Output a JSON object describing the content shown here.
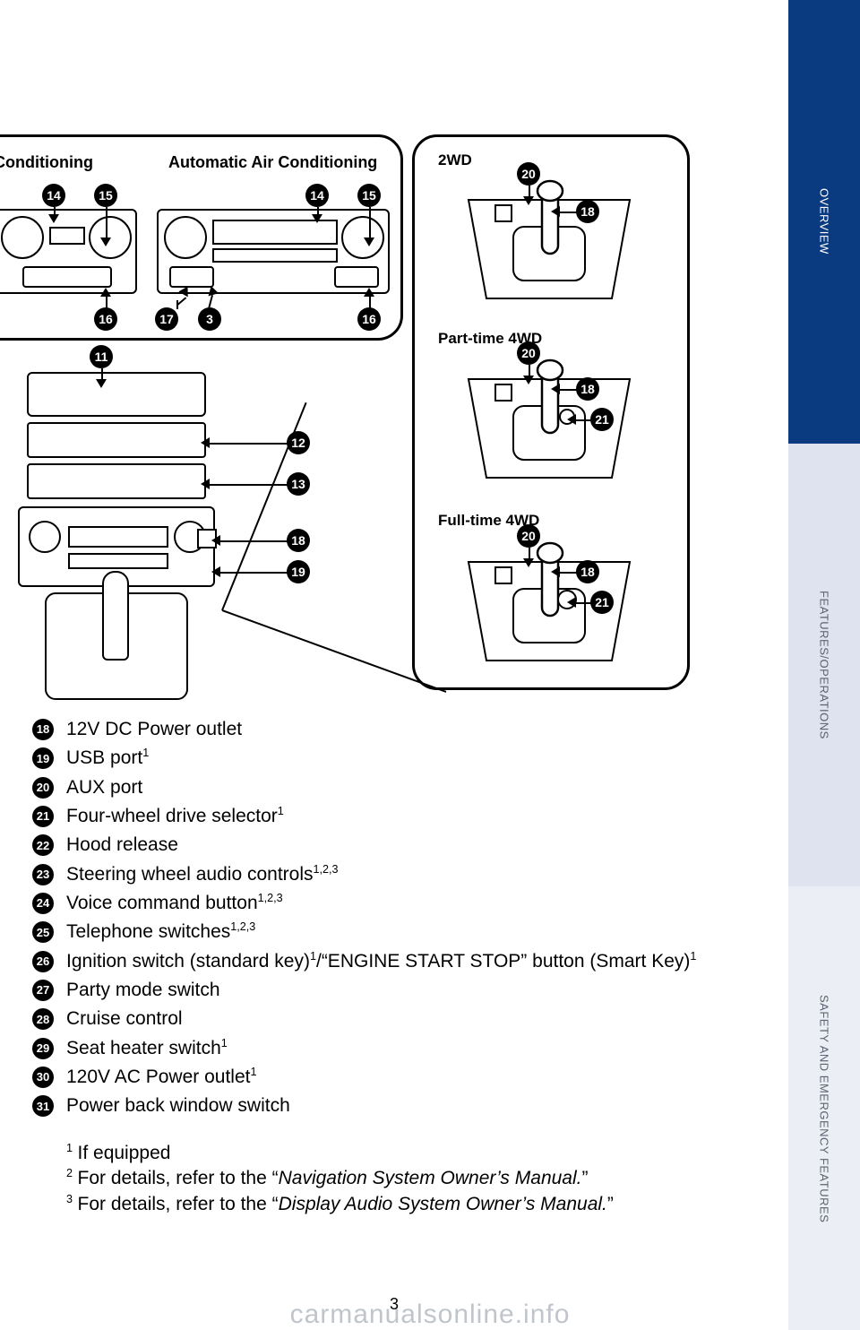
{
  "sidetabs": {
    "overview": "OVERVIEW",
    "features": "FEATURES/OPERATIONS",
    "safety": "SAFETY AND EMERGENCY FEATURES"
  },
  "ac_panel": {
    "label_conditioning": "Conditioning",
    "label_auto": "Automatic Air Conditioning",
    "callouts_left": {
      "c14": "14",
      "c15": "15",
      "c16": "16"
    },
    "callouts_right": {
      "c14": "14",
      "c15": "15",
      "c16": "16",
      "c17": "17",
      "c3": "3"
    }
  },
  "center_console": {
    "c11": "11",
    "c12": "12",
    "c13": "13",
    "c18": "18",
    "c19": "19"
  },
  "drive_panel": {
    "label_2wd": "2WD",
    "label_pt4wd": "Part-time 4WD",
    "label_ft4wd": "Full-time 4WD",
    "twd": {
      "c20": "20",
      "c18": "18"
    },
    "pt4wd": {
      "c20": "20",
      "c18": "18",
      "c21": "21"
    },
    "ft4wd": {
      "c20": "20",
      "c18": "18",
      "c21": "21"
    }
  },
  "list": [
    {
      "n": "18",
      "text": "12V DC Power outlet",
      "sup": ""
    },
    {
      "n": "19",
      "text": "USB port",
      "sup": "1"
    },
    {
      "n": "20",
      "text": "AUX port",
      "sup": ""
    },
    {
      "n": "21",
      "text": "Four-wheel drive selector",
      "sup": "1"
    },
    {
      "n": "22",
      "text": "Hood release",
      "sup": ""
    },
    {
      "n": "23",
      "text": "Steering wheel audio controls",
      "sup": "1,2,3"
    },
    {
      "n": "24",
      "text": "Voice command button",
      "sup": "1,2,3"
    },
    {
      "n": "25",
      "text": "Telephone switches",
      "sup": "1,2,3"
    },
    {
      "n": "26",
      "text": "Ignition switch (standard key)",
      "sup": "1",
      "text2": "/“ENGINE START STOP” button (Smart Key)",
      "sup2": "1"
    },
    {
      "n": "27",
      "text": "Party mode switch",
      "sup": ""
    },
    {
      "n": "28",
      "text": "Cruise control",
      "sup": ""
    },
    {
      "n": "29",
      "text": "Seat heater switch",
      "sup": "1"
    },
    {
      "n": "30",
      "text": "120V AC Power outlet",
      "sup": "1"
    },
    {
      "n": "31",
      "text": "Power back window switch",
      "sup": ""
    }
  ],
  "footnotes": {
    "f1_pre": "If equipped",
    "f2_pre": "For details, refer to the “",
    "f2_em": "Navigation System Owner’s Manual.",
    "f2_post": "”",
    "f3_pre": "For details, refer to the “",
    "f3_em": "Display Audio System Owner’s Manual.",
    "f3_post": "”"
  },
  "pagenum": "3",
  "watermark": "carmanualsonline.info",
  "colors": {
    "tab_active": "#0a3a80",
    "tab_mid": "#dfe3f0",
    "tab_bot": "#eceef5"
  }
}
